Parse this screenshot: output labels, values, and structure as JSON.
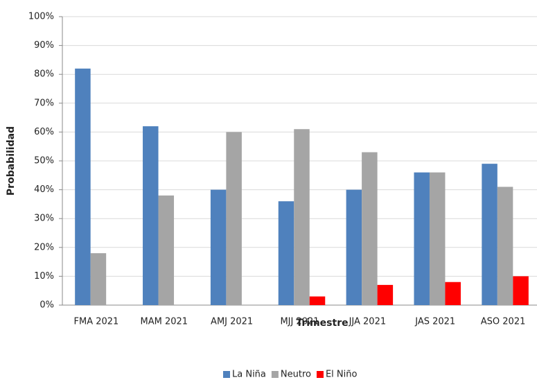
{
  "chart_data": {
    "type": "bar",
    "x_label": "Trimestre",
    "y_label": "Probabilidad",
    "categories": [
      "FMA 2021",
      "MAM 2021",
      "AMJ 2021",
      "MJJ 2021",
      "JJA 2021",
      "JAS 2021",
      "ASO 2021"
    ],
    "series": [
      {
        "name": "La Niña",
        "color": "#4f81bd",
        "values": [
          82,
          62,
          40,
          36,
          40,
          46,
          49
        ]
      },
      {
        "name": "Neutro",
        "color": "#a5a5a5",
        "values": [
          18,
          38,
          60,
          61,
          53,
          46,
          41
        ]
      },
      {
        "name": "El Niño",
        "color": "#ff0000",
        "values": [
          0,
          0,
          0,
          3,
          7,
          8,
          10
        ]
      }
    ],
    "ylim": [
      0,
      100
    ],
    "yticks": [
      {
        "value": 0,
        "label": "0%"
      },
      {
        "value": 10,
        "label": "10%"
      },
      {
        "value": 20,
        "label": "20%"
      },
      {
        "value": 30,
        "label": "30%"
      },
      {
        "value": 40,
        "label": "40%"
      },
      {
        "value": 50,
        "label": "50%"
      },
      {
        "value": 60,
        "label": "60%"
      },
      {
        "value": 70,
        "label": "70%"
      },
      {
        "value": 80,
        "label": "80%"
      },
      {
        "value": 90,
        "label": "90%"
      },
      {
        "value": 100,
        "label": "100%"
      }
    ],
    "grid": true,
    "legend": "bottom"
  }
}
